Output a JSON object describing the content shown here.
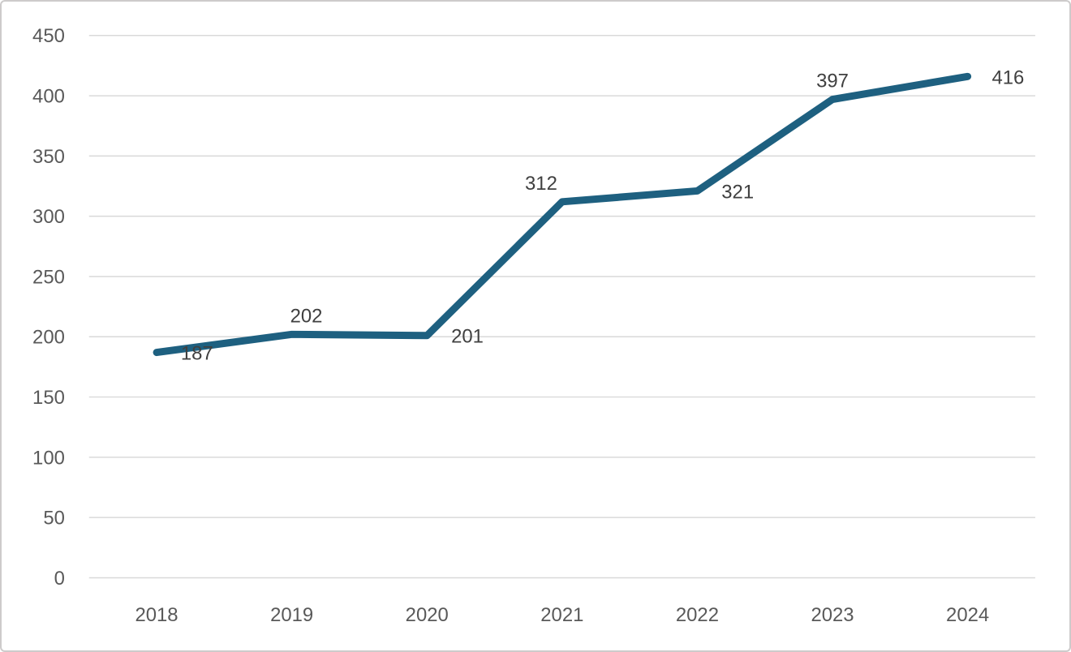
{
  "chart_data": {
    "type": "line",
    "title": "",
    "xlabel": "",
    "ylabel": "",
    "categories": [
      "2018",
      "2019",
      "2020",
      "2021",
      "2022",
      "2023",
      "2024"
    ],
    "series": [
      {
        "name": "series-1",
        "values": [
          187,
          202,
          201,
          312,
          321,
          397,
          416
        ]
      }
    ],
    "data_labels": [
      "187",
      "202",
      "201",
      "312",
      "321",
      "397",
      "416"
    ],
    "label_positions": [
      "right",
      "above-right",
      "right",
      "above-left",
      "right",
      "above",
      "right"
    ],
    "ylim": [
      0,
      450
    ],
    "y_ticks": [
      0,
      50,
      100,
      150,
      200,
      250,
      300,
      350,
      400,
      450
    ],
    "grid": "horizontal",
    "legend": "none",
    "colors": {
      "line": "#1E6080",
      "gridline": "#D9D9D9",
      "axis_label": "#595959",
      "data_label": "#404040",
      "background": "#FFFFFF",
      "border": "#CDCBCB"
    }
  }
}
